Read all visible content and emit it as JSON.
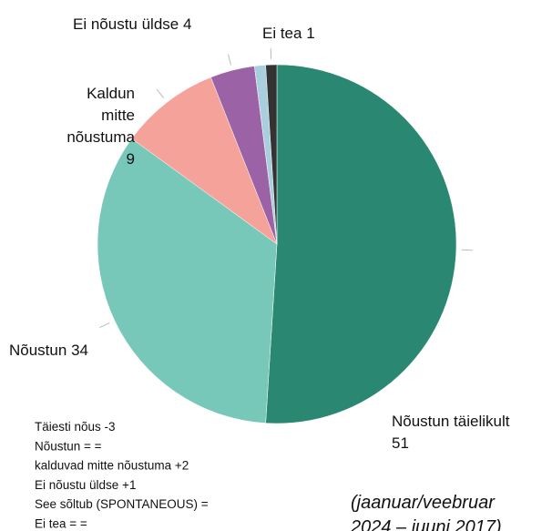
{
  "chart_data": {
    "type": "pie",
    "categories": [
      "Nõustun täielikult",
      "Nõustun",
      "Kaldun mitte nõustuma",
      "Ei nõustu üldse",
      null,
      "Ei tea"
    ],
    "values": [
      51,
      34,
      9,
      4,
      1,
      1
    ],
    "colors": [
      "#2a8872",
      "#78c8b9",
      "#f5a29b",
      "#9b62a6",
      "#a9cfdf",
      "#333333"
    ],
    "notes": [
      "Täiesti nõus -3",
      "Nõustun = =",
      "kalduvad mitte nõustuma +2",
      "Ei nõustu üldse +1",
      "See sõltub (SPONTANEOUS) =",
      "Ei tea = ="
    ],
    "annotation": [
      "(jaanuar/veebruar",
      "2024 – juuni 2017)"
    ]
  }
}
